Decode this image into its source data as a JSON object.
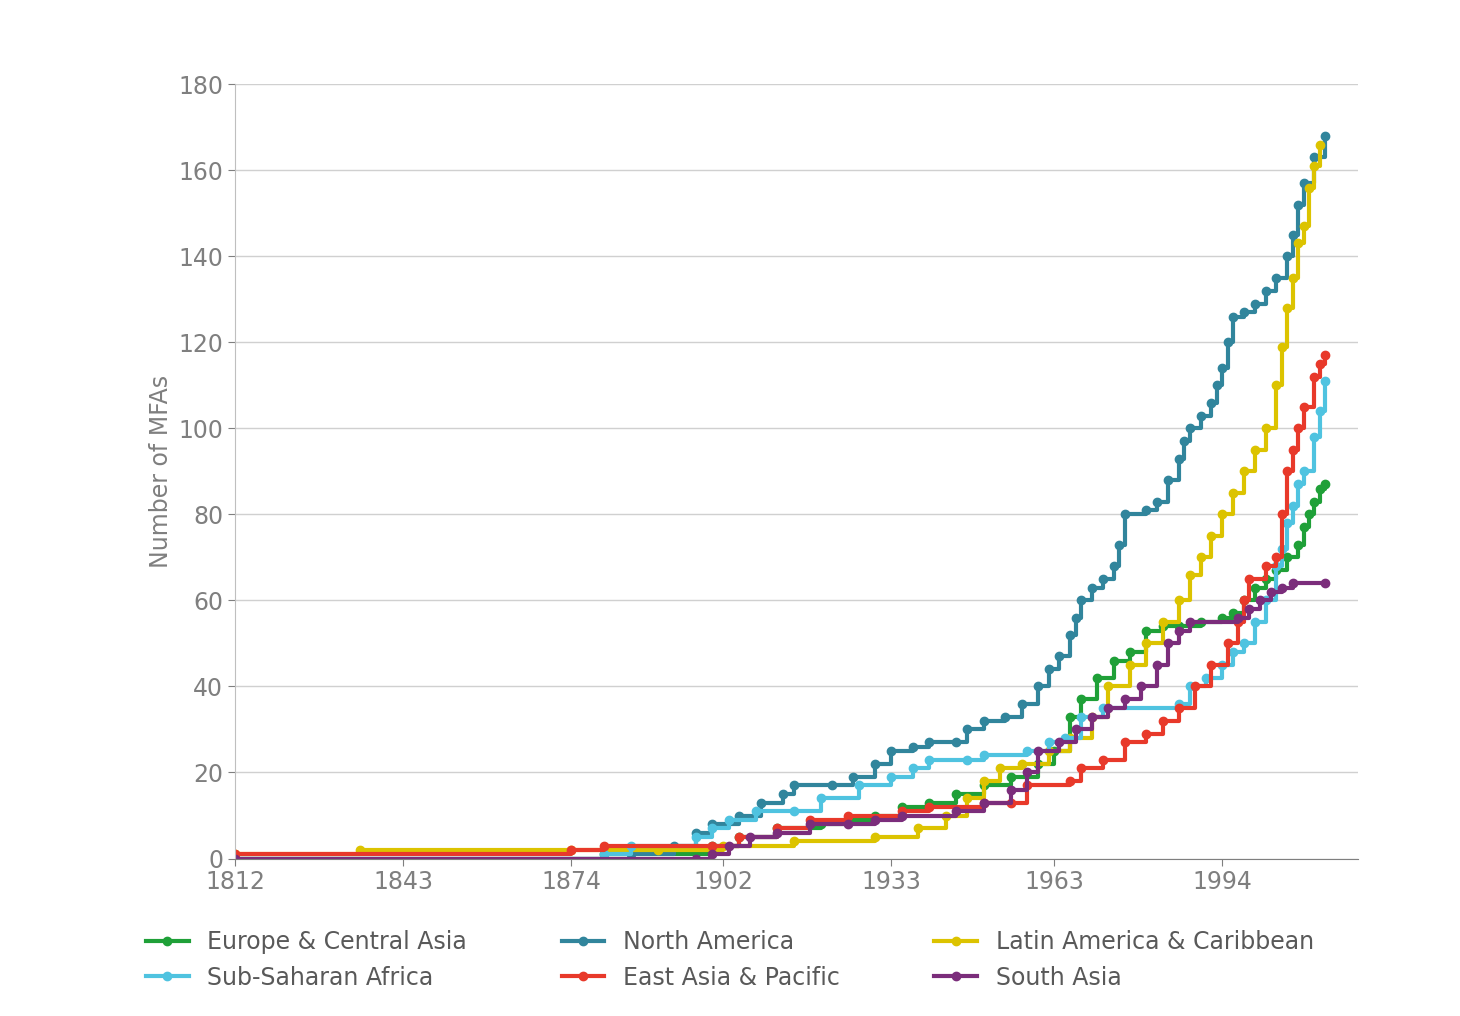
{
  "chart_data": {
    "type": "line",
    "y_label": "Number of MFAs",
    "xlim": [
      1812,
      2019
    ],
    "xticks": [
      1812,
      1843,
      1874,
      1902,
      1933,
      1963,
      1994
    ],
    "ylim": [
      0,
      180
    ],
    "yticks": [
      0,
      20,
      40,
      60,
      80,
      100,
      120,
      140,
      160,
      180
    ],
    "grid": true,
    "legend": "lower center",
    "marker": "o",
    "line_style": "steps",
    "series": [
      {
        "name": "Europe & Central Asia",
        "color": "#1fa038",
        "x": [
          1812,
          1880,
          1900,
          1905,
          1912,
          1920,
          1925,
          1930,
          1935,
          1940,
          1945,
          1950,
          1955,
          1960,
          1963,
          1966,
          1968,
          1971,
          1974,
          1977,
          1980,
          1983,
          1986,
          1990,
          1994,
          1996,
          1998,
          2000,
          2002,
          2004,
          2006,
          2008,
          2009,
          2010,
          2011,
          2012,
          2013
        ],
        "values": [
          0,
          1,
          3,
          5,
          7,
          8,
          9,
          10,
          12,
          13,
          15,
          17,
          19,
          22,
          25,
          33,
          37,
          42,
          46,
          48,
          53,
          54,
          54,
          55,
          56,
          57,
          60,
          63,
          65,
          67,
          70,
          73,
          77,
          80,
          83,
          86,
          87
        ]
      },
      {
        "name": "North America",
        "color": "#31859c",
        "x": [
          1812,
          1885,
          1893,
          1897,
          1900,
          1905,
          1909,
          1913,
          1915,
          1922,
          1926,
          1930,
          1933,
          1937,
          1940,
          1945,
          1947,
          1950,
          1954,
          1957,
          1960,
          1962,
          1964,
          1966,
          1967,
          1968,
          1970,
          1972,
          1974,
          1975,
          1976,
          1980,
          1982,
          1984,
          1986,
          1987,
          1988,
          1990,
          1992,
          1993,
          1994,
          1995,
          1996,
          1998,
          2000,
          2002,
          2004,
          2006,
          2007,
          2008,
          2009,
          2011,
          2013
        ],
        "values": [
          0,
          1,
          3,
          6,
          8,
          10,
          13,
          15,
          17,
          17,
          19,
          22,
          25,
          26,
          27,
          27,
          30,
          32,
          33,
          36,
          40,
          44,
          47,
          52,
          56,
          60,
          63,
          65,
          68,
          73,
          80,
          81,
          83,
          88,
          93,
          97,
          100,
          103,
          106,
          110,
          114,
          120,
          126,
          127,
          129,
          132,
          135,
          140,
          145,
          152,
          157,
          163,
          168
        ]
      },
      {
        "name": "Latin America & Caribbean",
        "color": "#dcc300",
        "x": [
          1812,
          1835,
          1874,
          1890,
          1902,
          1915,
          1930,
          1938,
          1943,
          1947,
          1950,
          1953,
          1957,
          1962,
          1966,
          1970,
          1973,
          1977,
          1980,
          1983,
          1986,
          1988,
          1990,
          1992,
          1994,
          1996,
          1998,
          2000,
          2002,
          2004,
          2005,
          2006,
          2007,
          2008,
          2009,
          2010,
          2011,
          2012
        ],
        "values": [
          1,
          2,
          2,
          2,
          3,
          4,
          5,
          7,
          10,
          14,
          18,
          21,
          22,
          25,
          28,
          33,
          40,
          45,
          50,
          55,
          60,
          66,
          70,
          75,
          80,
          85,
          90,
          95,
          100,
          110,
          119,
          128,
          135,
          143,
          147,
          156,
          161,
          166
        ]
      },
      {
        "name": "Sub-Saharan Africa",
        "color": "#4fc3e0",
        "x": [
          1812,
          1880,
          1885,
          1897,
          1900,
          1903,
          1908,
          1915,
          1920,
          1927,
          1933,
          1937,
          1940,
          1947,
          1950,
          1958,
          1962,
          1965,
          1968,
          1972,
          1986,
          1988,
          1991,
          1994,
          1996,
          1998,
          2000,
          2002,
          2004,
          2005,
          2006,
          2007,
          2008,
          2009,
          2011,
          2012,
          2013
        ],
        "values": [
          0,
          1,
          3,
          5,
          7,
          9,
          11,
          11,
          14,
          17,
          19,
          21,
          23,
          23,
          24,
          25,
          27,
          28,
          33,
          35,
          36,
          40,
          42,
          45,
          48,
          50,
          55,
          60,
          68,
          72,
          78,
          82,
          87,
          90,
          98,
          104,
          111
        ]
      },
      {
        "name": "East Asia & Pacific",
        "color": "#e8392a",
        "x": [
          1812,
          1874,
          1880,
          1900,
          1905,
          1912,
          1918,
          1925,
          1935,
          1940,
          1950,
          1955,
          1958,
          1966,
          1968,
          1972,
          1976,
          1980,
          1983,
          1986,
          1989,
          1992,
          1995,
          1997,
          1998,
          1999,
          2002,
          2004,
          2005,
          2006,
          2007,
          2008,
          2009,
          2011,
          2012,
          2013
        ],
        "values": [
          1,
          2,
          3,
          3,
          5,
          7,
          9,
          10,
          11,
          12,
          13,
          13,
          17,
          18,
          21,
          23,
          27,
          29,
          32,
          35,
          40,
          45,
          50,
          55,
          60,
          65,
          68,
          70,
          80,
          90,
          95,
          100,
          105,
          112,
          115,
          117
        ]
      },
      {
        "name": "South Asia",
        "color": "#7b2d7b",
        "x": [
          1812,
          1897,
          1900,
          1903,
          1907,
          1912,
          1918,
          1925,
          1930,
          1935,
          1945,
          1950,
          1955,
          1958,
          1960,
          1964,
          1967,
          1970,
          1973,
          1976,
          1979,
          1982,
          1984,
          1986,
          1988,
          1997,
          1999,
          2001,
          2003,
          2005,
          2007,
          2013
        ],
        "values": [
          0,
          0,
          1,
          3,
          5,
          6,
          8,
          8,
          9,
          10,
          11,
          13,
          16,
          20,
          25,
          27,
          30,
          33,
          35,
          37,
          40,
          45,
          50,
          53,
          55,
          56,
          58,
          60,
          62,
          63,
          64,
          64
        ]
      }
    ]
  }
}
